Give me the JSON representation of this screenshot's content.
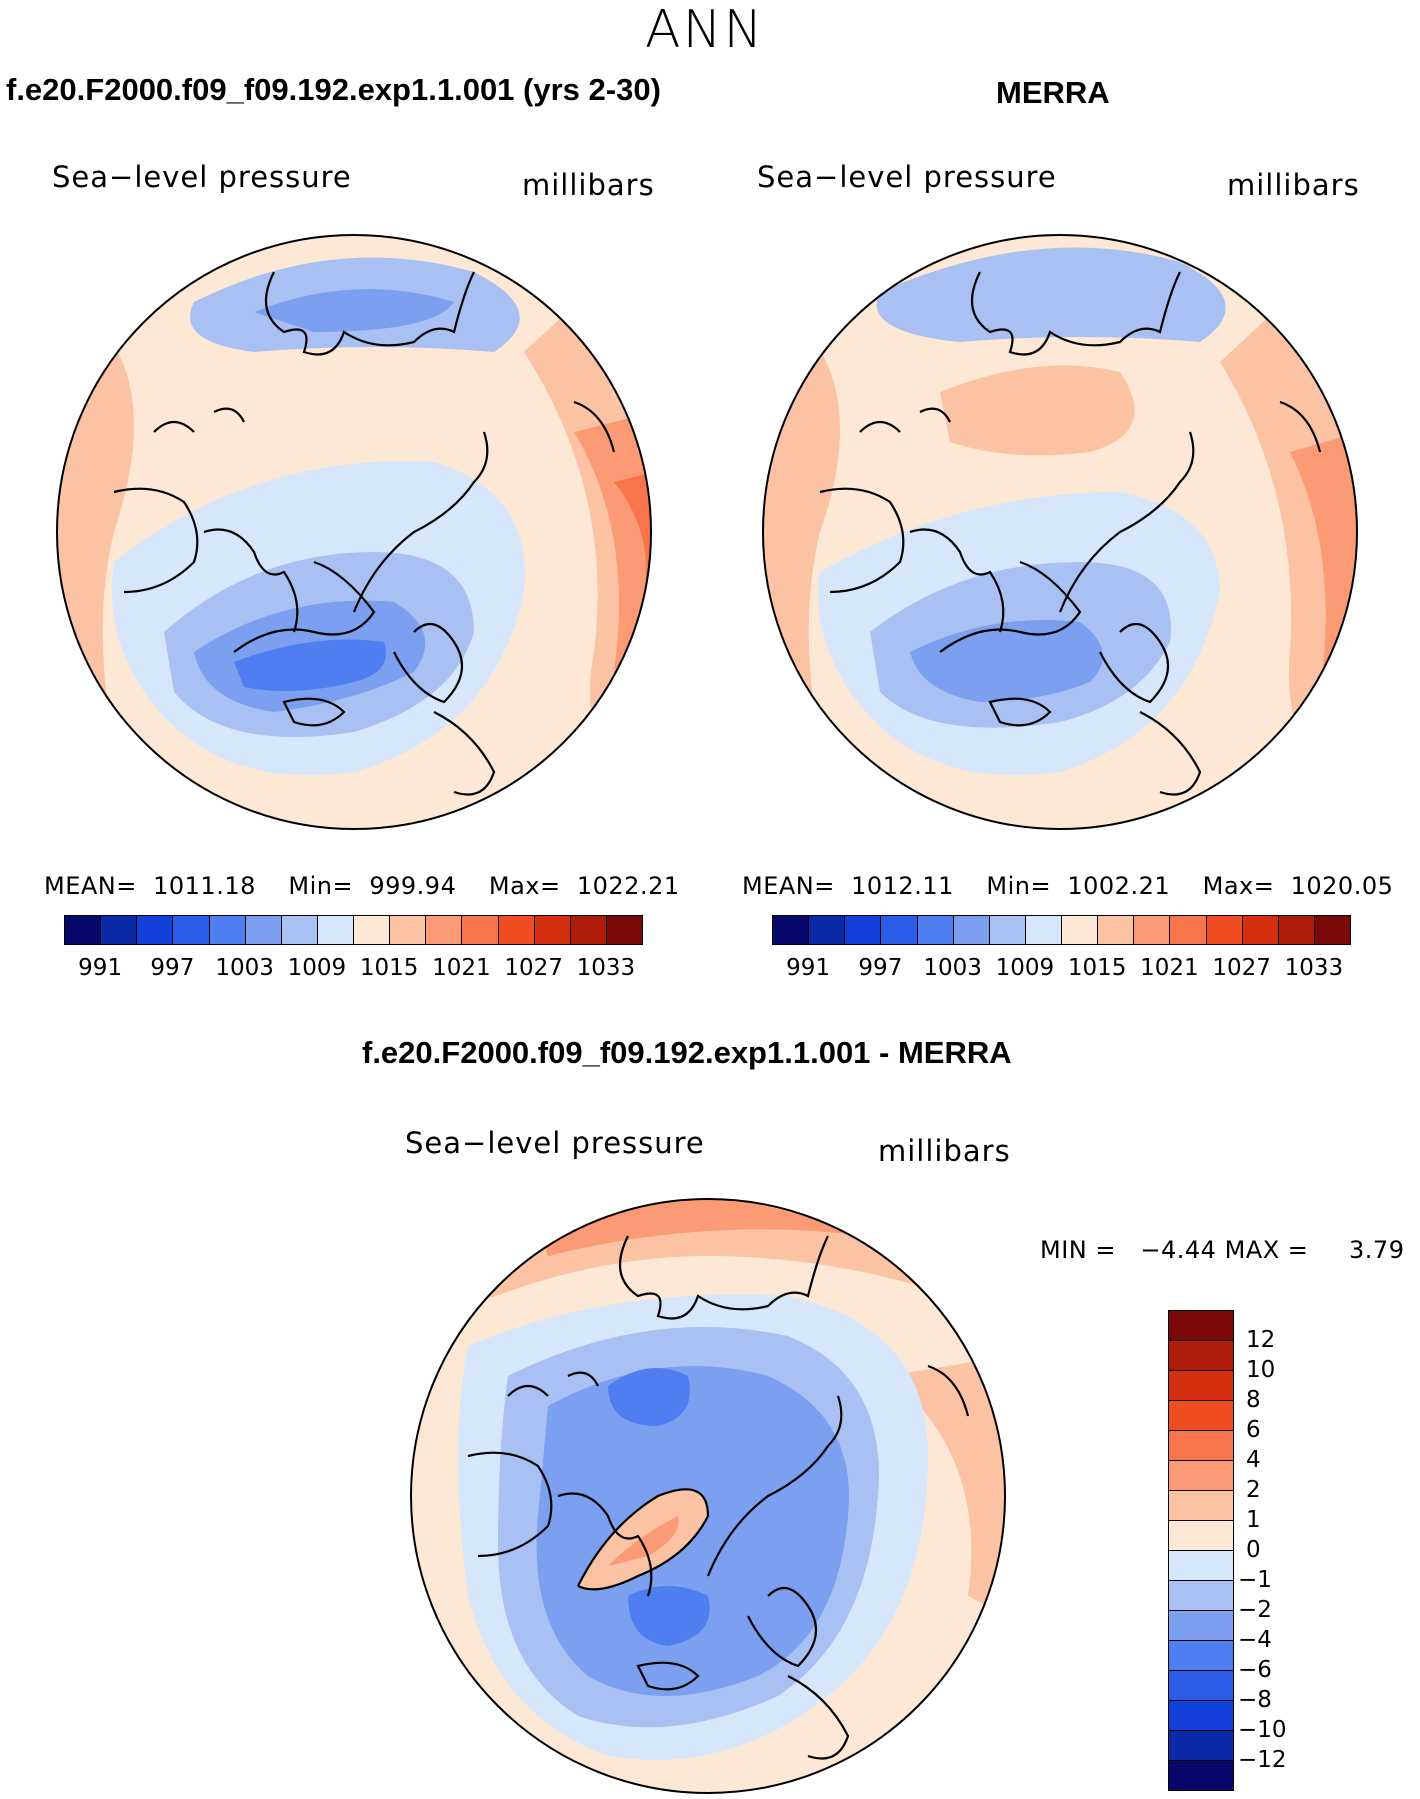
{
  "season": "ANN",
  "panels": [
    {
      "title": "f.e20.F2000.f09_f09.192.exp1.1.001 (yrs 2-30)",
      "variable": "Sea−level pressure",
      "units": "millibars",
      "stats": {
        "mean_label": "MEAN=",
        "mean": "1011.18",
        "min_label": "Min=",
        "min": "999.94",
        "max_label": "Max=",
        "max": "1022.21"
      }
    },
    {
      "title": "MERRA",
      "variable": "Sea−level pressure",
      "units": "millibars",
      "stats": {
        "mean_label": "MEAN=",
        "mean": "1012.11",
        "min_label": "Min=",
        "min": "1002.21",
        "max_label": "Max=",
        "max": "1020.05"
      }
    }
  ],
  "difference": {
    "title": "f.e20.F2000.f09_f09.192.exp1.1.001 - MERRA",
    "variable": "Sea−level pressure",
    "units": "millibars",
    "stats": {
      "min_label": "MIN =",
      "min": "−4.44",
      "max_label": "MAX =",
      "max": "3.79"
    }
  },
  "colorbar_abs": {
    "ticks": [
      "991",
      "997",
      "1003",
      "1009",
      "1015",
      "1021",
      "1027",
      "1033"
    ],
    "colors": [
      "#08086b",
      "#0a2aa8",
      "#1240d8",
      "#2c5de8",
      "#4e7ef0",
      "#7d9ff0",
      "#a9c1f2",
      "#d7e7fb",
      "#fde8d6",
      "#fcc2a4",
      "#fb9a74",
      "#f8744a",
      "#f04e22",
      "#d4300f",
      "#b01c0a",
      "#7a0808"
    ]
  },
  "colorbar_diff": {
    "ticks": [
      "12",
      "10",
      "8",
      "6",
      "4",
      "2",
      "1",
      "0",
      "−1",
      "−2",
      "−4",
      "−6",
      "−8",
      "−10",
      "−12"
    ],
    "colors": [
      "#7a0808",
      "#b01c0a",
      "#d4300f",
      "#f04e22",
      "#f8744a",
      "#fb9a74",
      "#fcc2a4",
      "#fde8d6",
      "#d7e7fb",
      "#a9c1f2",
      "#7d9ff0",
      "#4e7ef0",
      "#2c5de8",
      "#1240d8",
      "#0a2aa8",
      "#08086b"
    ]
  },
  "map_colors": {
    "land_line": "#000000",
    "bg_left": "#fde8d6",
    "bg_right": "#fde8d6",
    "bg_diff": "#d7e7fb"
  }
}
